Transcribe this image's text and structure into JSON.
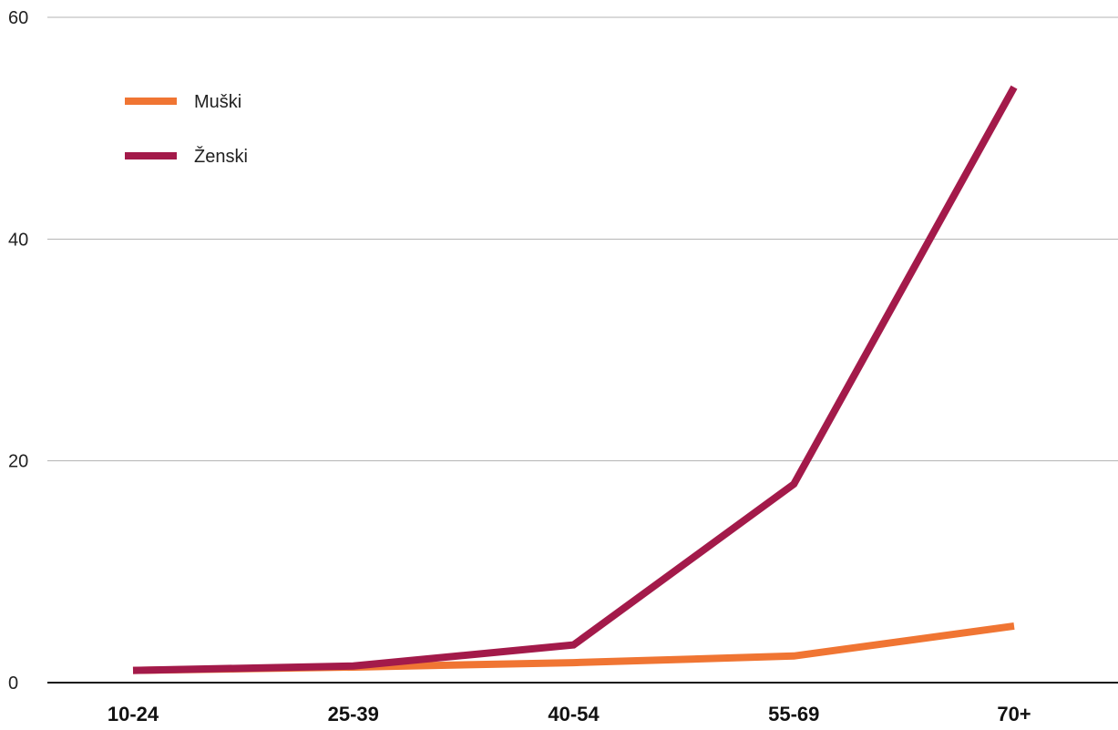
{
  "chart_data": {
    "type": "line",
    "categories": [
      "10-24",
      "25-39",
      "40-54",
      "55-69",
      "70+"
    ],
    "series": [
      {
        "name": "Muški",
        "color": "#f07533",
        "values": [
          1.1,
          1.4,
          1.8,
          2.4,
          5.1
        ]
      },
      {
        "name": "Ženski",
        "color": "#a31a4a",
        "values": [
          1.1,
          1.5,
          3.4,
          17.9,
          53.7
        ]
      }
    ],
    "yticks": [
      0,
      20,
      40,
      60
    ],
    "ylim": [
      0,
      60
    ],
    "grid": true,
    "legend": "top-left"
  }
}
